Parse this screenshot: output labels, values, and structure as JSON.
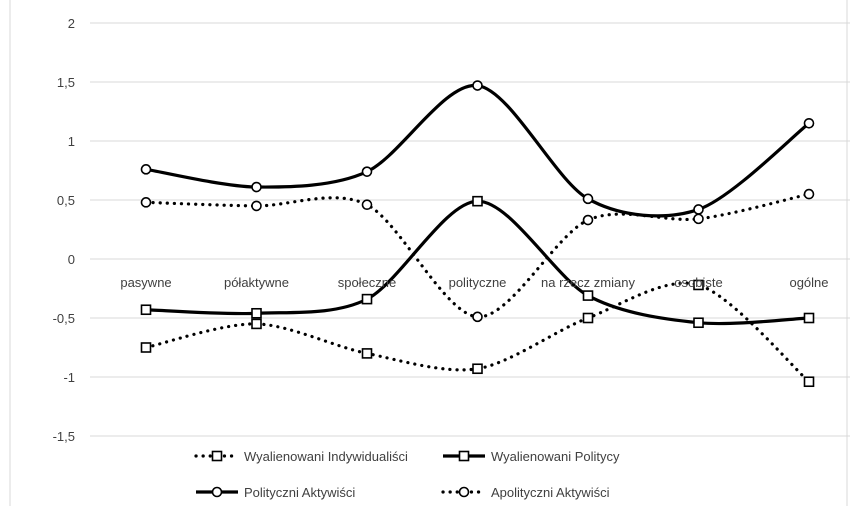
{
  "chart_data": {
    "type": "line",
    "title": "",
    "xlabel": "",
    "ylabel": "",
    "ylim": [
      -1.5,
      2
    ],
    "yticks": [
      "2",
      "1,5",
      "1",
      "0,5",
      "0",
      "-0,5",
      "-1",
      "-1,5"
    ],
    "grid": true,
    "legend_position": "bottom",
    "categories": [
      "pasywne",
      "półaktywne",
      "społeczne",
      "polityczne",
      "na rzecz zmiany",
      "osobiste",
      "ogólne"
    ],
    "series": [
      {
        "name": "Wyalienowani Indywidualiści",
        "values": [
          -0.75,
          -0.55,
          -0.8,
          -0.93,
          -0.5,
          -0.22,
          -1.04
        ],
        "line": "dotted",
        "marker": "square"
      },
      {
        "name": "Wyalienowani Politycy",
        "values": [
          -0.43,
          -0.46,
          -0.34,
          0.49,
          -0.31,
          -0.54,
          -0.5
        ],
        "line": "solid",
        "marker": "square"
      },
      {
        "name": "Polityczni Aktywiści",
        "values": [
          0.76,
          0.61,
          0.74,
          1.47,
          0.51,
          0.42,
          1.15
        ],
        "line": "solid",
        "marker": "circle"
      },
      {
        "name": "Apolityczni Aktywiści",
        "values": [
          0.48,
          0.45,
          0.46,
          -0.49,
          0.33,
          0.34,
          0.55
        ],
        "line": "dotted",
        "marker": "circle"
      }
    ]
  },
  "colors": {
    "series": "#000000",
    "grid": "#d9d9d9",
    "text": "#404040"
  }
}
